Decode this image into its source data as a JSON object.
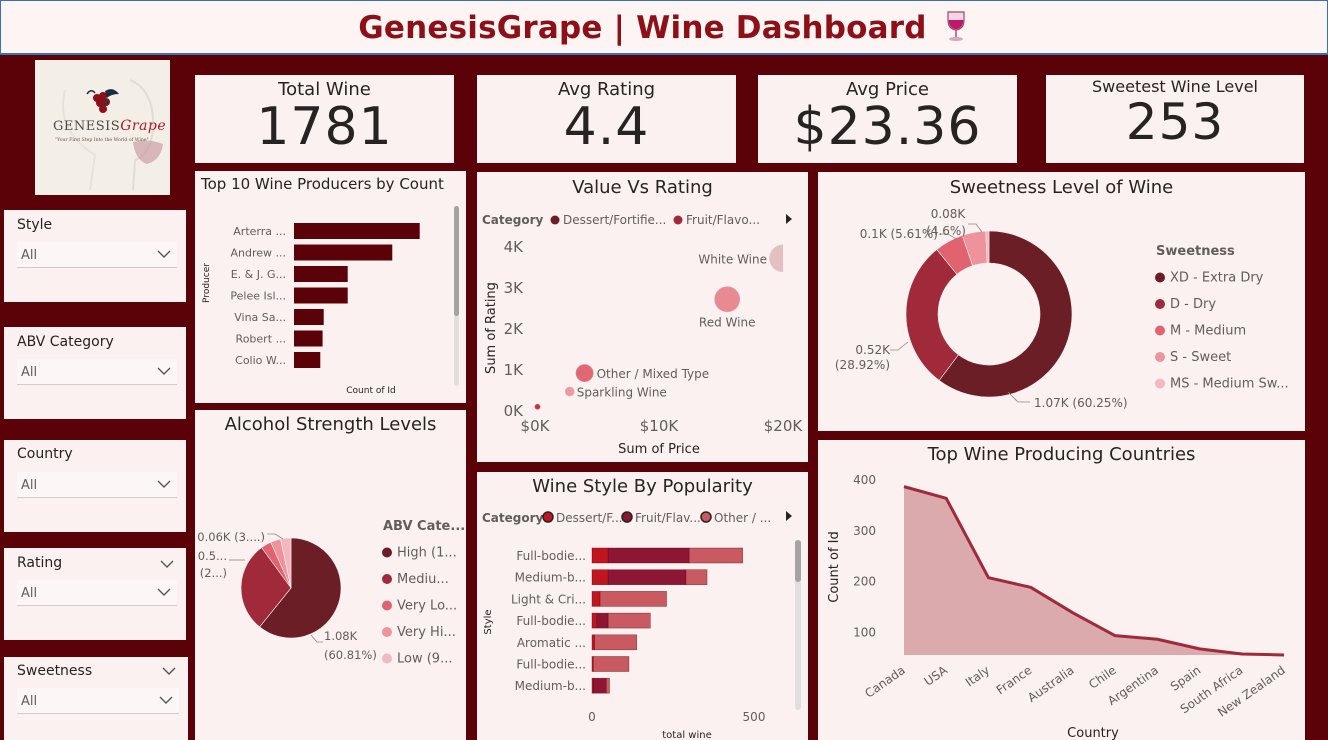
{
  "header": {
    "title": "GenesisGrape | Wine Dashboard",
    "icon": "wine-glass-icon"
  },
  "logo": {
    "text_main": "GENESIS",
    "text_accent": "Grape",
    "tagline": "\"Your First Step Into the World of Wine\""
  },
  "kpis": [
    {
      "label": "Total Wine",
      "value": "1781"
    },
    {
      "label": "Avg Rating",
      "value": "4.4"
    },
    {
      "label": "Avg Price",
      "value": "$23.36"
    },
    {
      "label": "Sweetest Wine Level",
      "value": "253"
    }
  ],
  "slicers": {
    "style": {
      "label": "Style",
      "value": "All"
    },
    "abv": {
      "label": "ABV Category",
      "value": "All"
    },
    "country": {
      "label": "Country",
      "value": "All"
    },
    "rating": {
      "label": "Rating",
      "value": "All"
    },
    "sweetness": {
      "label": "Sweetness",
      "value": "All"
    }
  },
  "colors": {
    "maroon": "#5b0208",
    "accent": "#8e0f17",
    "bar": "#5b0208",
    "panel": "#fbf1f0"
  },
  "chart_data": [
    {
      "id": "producers",
      "type": "bar",
      "title": "Top 10 Wine Producers by Count",
      "xlabel": "Count of Id",
      "ylabel": "Producer",
      "categories": [
        "Arterra ...",
        "Andrew ...",
        "E. & J. G...",
        "Pelee Isl...",
        "Vina Sa...",
        "Robert ...",
        "Colio W..."
      ],
      "values": [
        110,
        86,
        47,
        47,
        26,
        25,
        23
      ],
      "xlim": [
        0,
        140
      ]
    },
    {
      "id": "value_rating",
      "type": "scatter",
      "title": "Value Vs Rating",
      "xlabel": "Sum of Price",
      "ylabel": "Sum of Rating",
      "legend_title": "Category",
      "legend": [
        "Dessert/Fortifie...",
        "Fruit/Flavo..."
      ],
      "x_ticks": [
        "$0K",
        "$10K",
        "$20K"
      ],
      "y_ticks": [
        "0K",
        "1K",
        "2K",
        "3K",
        "4K"
      ],
      "xlim": [
        0,
        20000
      ],
      "ylim": [
        0,
        4000
      ],
      "points": [
        {
          "label": "White Wine",
          "x": 20000,
          "y": 3700,
          "r": 14,
          "color": "#e5c0c2"
        },
        {
          "label": "Red Wine",
          "x": 15500,
          "y": 2700,
          "r": 13,
          "color": "#e78a92"
        },
        {
          "label": "Other / Mixed Type",
          "x": 4000,
          "y": 900,
          "r": 9,
          "color": "#e16872"
        },
        {
          "label": "Sparkling Wine",
          "x": 2800,
          "y": 450,
          "r": 5,
          "color": "#ec9aa1"
        },
        {
          "label": "",
          "x": 200,
          "y": 80,
          "r": 3,
          "color": "#c8323e"
        }
      ]
    },
    {
      "id": "sweetness",
      "type": "pie",
      "title": "Sweetness Level of Wine",
      "legend_title": "Sweetness",
      "labels": [
        "XD - Extra Dry",
        "D - Dry",
        "M - Medium",
        "S - Sweet",
        "MS - Medium Sw..."
      ],
      "values": [
        1073,
        515,
        100,
        82,
        11
      ],
      "percent": [
        60.25,
        28.92,
        5.61,
        4.6,
        0.62
      ],
      "data_labels": [
        [
          "1.07K (60.25%)"
        ],
        [
          "0.52K",
          "(28.92%)"
        ],
        [
          "0.1K (5.61%)"
        ],
        [
          "0.08K",
          "(4.6%)"
        ]
      ],
      "colors": [
        "#6b1e25",
        "#a0293a",
        "#e0636f",
        "#ee929c",
        "#f2b8bf"
      ]
    },
    {
      "id": "alcohol",
      "type": "pie",
      "title": "Alcohol Strength Levels",
      "legend_title": "ABV Cate...",
      "labels": [
        "High (1...",
        "Mediu...",
        "Very Lo...",
        "Very Hi...",
        "Low (9..."
      ],
      "values": [
        1083,
        520,
        60,
        58,
        60
      ],
      "percent": [
        60.81,
        29.2,
        3.37,
        3.26,
        3.37
      ],
      "data_labels": [
        [
          "1.08K",
          "(60.81%)"
        ],
        [
          "0.5...",
          "(2...)"
        ],
        [
          "0.06K (3....)"
        ]
      ],
      "colors": [
        "#6b1e25",
        "#a0293a",
        "#e0636f",
        "#ee929c",
        "#f2b8bf"
      ]
    },
    {
      "id": "style_popularity",
      "type": "bar",
      "title": "Wine Style By Popularity",
      "xlabel": "total wine",
      "ylabel": "Style",
      "legend_title": "Category",
      "legend": [
        "Dessert/F...",
        "Fruit/Flav...",
        "Other / ..."
      ],
      "categories": [
        "Full-bodie...",
        "Medium-b...",
        "Light & Cri...",
        "Full-bodie...",
        "Aromatic ...",
        "Full-bodie...",
        "Medium-b..."
      ],
      "series": [
        {
          "color": "#c1161f",
          "values": [
            50,
            50,
            25,
            15,
            8,
            4,
            4
          ]
        },
        {
          "color": "#8e1635",
          "values": [
            250,
            240,
            0,
            35,
            0,
            0,
            40
          ]
        },
        {
          "color": "#c95a62",
          "values": [
            165,
            65,
            205,
            130,
            130,
            110,
            10
          ]
        }
      ],
      "x_ticks": [
        "0",
        "500"
      ],
      "xlim": [
        0,
        500
      ]
    },
    {
      "id": "countries",
      "type": "area",
      "title": "Top Wine Producing Countries",
      "xlabel": "Country",
      "ylabel": "Count of Id",
      "categories": [
        "Canada",
        "USA",
        "Italy",
        "France",
        "Australia",
        "Chile",
        "Argentina",
        "Spain",
        "South Africa",
        "New Zealand"
      ],
      "values": [
        385,
        362,
        206,
        187,
        137,
        92,
        85,
        66,
        56,
        54
      ],
      "y_ticks": [
        "100",
        "200",
        "300",
        "400"
      ],
      "ylim": [
        54,
        400
      ]
    }
  ]
}
